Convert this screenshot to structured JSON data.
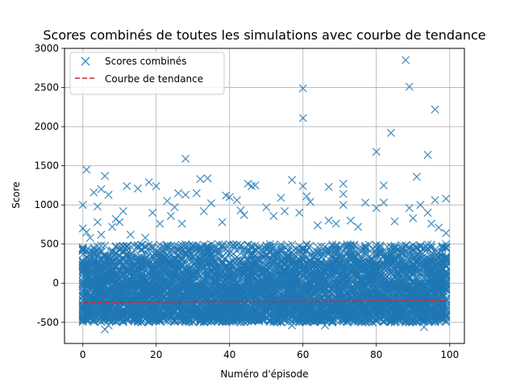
{
  "chart_data": {
    "type": "scatter",
    "title": "Scores combinés de toutes les simulations avec courbe de tendance",
    "xlabel": "Numéro d'épisode",
    "ylabel": "Score",
    "xlim": [
      -5,
      104
    ],
    "ylim": [
      -770,
      3000
    ],
    "xticks": [
      0,
      20,
      40,
      60,
      80,
      100
    ],
    "yticks": [
      -500,
      0,
      500,
      1000,
      1500,
      2000,
      2500,
      3000
    ],
    "grid": true,
    "legend_position": "top-left",
    "colors": {
      "scatter": "#1f77b4",
      "trend": "#d62728"
    },
    "series": [
      {
        "name": "Scores combinés",
        "kind": "scatter",
        "marker": "x",
        "bulk_range": [
          -500,
          500
        ],
        "outliers": [
          {
            "x": 0,
            "y": 1000
          },
          {
            "x": 0,
            "y": 700
          },
          {
            "x": 1,
            "y": 1450
          },
          {
            "x": 1,
            "y": 650
          },
          {
            "x": 2,
            "y": 580
          },
          {
            "x": 3,
            "y": 1160
          },
          {
            "x": 4,
            "y": 980
          },
          {
            "x": 4,
            "y": 780
          },
          {
            "x": 5,
            "y": 1200
          },
          {
            "x": 5,
            "y": 620
          },
          {
            "x": 6,
            "y": 1370
          },
          {
            "x": 6,
            "y": -590
          },
          {
            "x": 7,
            "y": 1130
          },
          {
            "x": 7,
            "y": -540
          },
          {
            "x": 8,
            "y": 720
          },
          {
            "x": 9,
            "y": 820
          },
          {
            "x": 10,
            "y": 780
          },
          {
            "x": 11,
            "y": 920
          },
          {
            "x": 12,
            "y": 1240
          },
          {
            "x": 13,
            "y": 620
          },
          {
            "x": 15,
            "y": 1210
          },
          {
            "x": 17,
            "y": 580
          },
          {
            "x": 18,
            "y": 1290
          },
          {
            "x": 19,
            "y": 900
          },
          {
            "x": 20,
            "y": 1240
          },
          {
            "x": 21,
            "y": 760
          },
          {
            "x": 23,
            "y": 1050
          },
          {
            "x": 24,
            "y": 860
          },
          {
            "x": 25,
            "y": 970
          },
          {
            "x": 26,
            "y": 1150
          },
          {
            "x": 27,
            "y": 760
          },
          {
            "x": 28,
            "y": 1590
          },
          {
            "x": 28,
            "y": 1130
          },
          {
            "x": 31,
            "y": 1150
          },
          {
            "x": 32,
            "y": 1330
          },
          {
            "x": 33,
            "y": 920
          },
          {
            "x": 34,
            "y": 1340
          },
          {
            "x": 35,
            "y": 1020
          },
          {
            "x": 38,
            "y": 780
          },
          {
            "x": 39,
            "y": 1120
          },
          {
            "x": 40,
            "y": 1100
          },
          {
            "x": 42,
            "y": 1060
          },
          {
            "x": 43,
            "y": 930
          },
          {
            "x": 44,
            "y": 870
          },
          {
            "x": 45,
            "y": 1270
          },
          {
            "x": 46,
            "y": 1240
          },
          {
            "x": 47,
            "y": 1250
          },
          {
            "x": 50,
            "y": 970
          },
          {
            "x": 52,
            "y": 860
          },
          {
            "x": 54,
            "y": 1090
          },
          {
            "x": 55,
            "y": 920
          },
          {
            "x": 57,
            "y": 1320
          },
          {
            "x": 57,
            "y": -540
          },
          {
            "x": 59,
            "y": 900
          },
          {
            "x": 60,
            "y": 2490
          },
          {
            "x": 60,
            "y": 2110
          },
          {
            "x": 60,
            "y": 1240
          },
          {
            "x": 61,
            "y": 1110
          },
          {
            "x": 62,
            "y": 1040
          },
          {
            "x": 64,
            "y": 740
          },
          {
            "x": 66,
            "y": -540
          },
          {
            "x": 67,
            "y": 1230
          },
          {
            "x": 67,
            "y": 800
          },
          {
            "x": 69,
            "y": 760
          },
          {
            "x": 71,
            "y": 1270
          },
          {
            "x": 71,
            "y": 1140
          },
          {
            "x": 71,
            "y": 1000
          },
          {
            "x": 73,
            "y": 800
          },
          {
            "x": 75,
            "y": 720
          },
          {
            "x": 77,
            "y": 1030
          },
          {
            "x": 80,
            "y": 1680
          },
          {
            "x": 80,
            "y": 960
          },
          {
            "x": 82,
            "y": 1250
          },
          {
            "x": 82,
            "y": 1030
          },
          {
            "x": 84,
            "y": 1920
          },
          {
            "x": 85,
            "y": 790
          },
          {
            "x": 88,
            "y": 2850
          },
          {
            "x": 89,
            "y": 2510
          },
          {
            "x": 89,
            "y": 960
          },
          {
            "x": 90,
            "y": 830
          },
          {
            "x": 91,
            "y": 1360
          },
          {
            "x": 92,
            "y": 1000
          },
          {
            "x": 93,
            "y": -560
          },
          {
            "x": 94,
            "y": 1640
          },
          {
            "x": 94,
            "y": 900
          },
          {
            "x": 95,
            "y": 760
          },
          {
            "x": 96,
            "y": 2220
          },
          {
            "x": 96,
            "y": 1060
          },
          {
            "x": 97,
            "y": 710
          },
          {
            "x": 99,
            "y": 1080
          },
          {
            "x": 99,
            "y": 640
          }
        ]
      },
      {
        "name": "Courbe de tendance",
        "kind": "line",
        "style": "dashed",
        "x": [
          0,
          99
        ],
        "y": [
          -245,
          -222
        ]
      }
    ]
  }
}
